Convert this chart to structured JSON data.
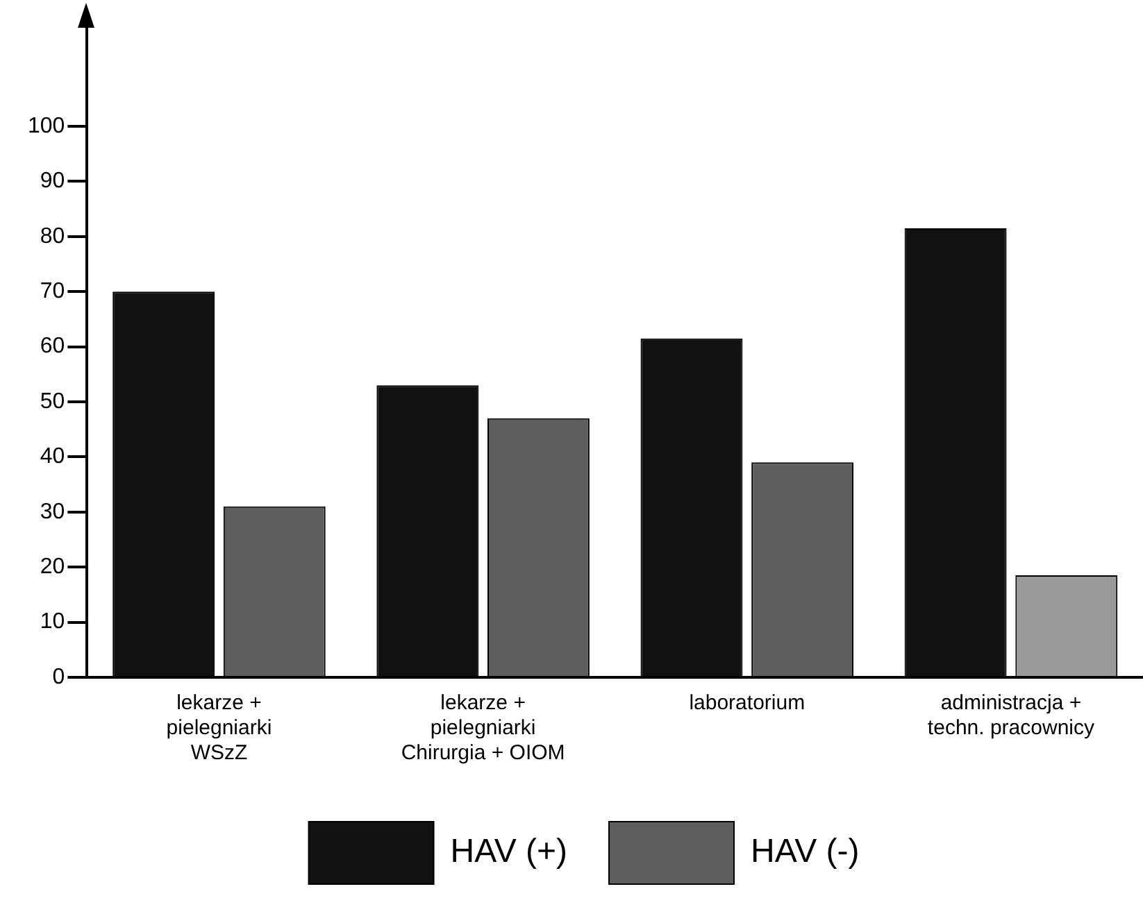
{
  "chart_data": {
    "type": "bar",
    "categories": [
      [
        "lekarze +",
        "pielegniarki",
        "WSzZ"
      ],
      [
        "lekarze +",
        "pielegniarki",
        "Chirurgia + OIOM"
      ],
      [
        "laboratorium"
      ],
      [
        "administracja +",
        "techn. pracownicy"
      ]
    ],
    "series": [
      {
        "name": "HAV (+)",
        "color": "#111111",
        "values": [
          70,
          53,
          61.5,
          81.5
        ]
      },
      {
        "name": "HAV (-)",
        "color": "#5e5e5e",
        "colors": [
          "#5e5e5e",
          "#5e5e5e",
          "#5e5e5e",
          "#9a9a9a"
        ],
        "values": [
          31,
          47,
          39,
          18.5
        ]
      }
    ],
    "ylim": [
      0,
      120
    ],
    "yticks": [
      0,
      10,
      20,
      30,
      40,
      50,
      60,
      70,
      80,
      90,
      100
    ],
    "grid": false,
    "legend": "bottom"
  }
}
